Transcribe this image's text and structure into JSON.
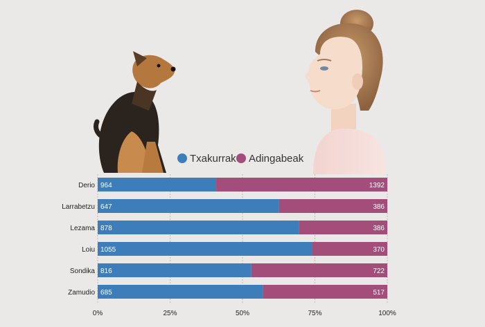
{
  "colors": {
    "background": "#ebe9e7",
    "series_dogs": "#3d7dba",
    "series_minors": "#a24d7a",
    "grid": "#bdbbb8"
  },
  "illustrations": {
    "dog": "dog-photo",
    "girl": "girl-photo"
  },
  "chart_data": {
    "type": "bar",
    "orientation": "horizontal",
    "stacked": "percent",
    "title": "",
    "xlabel": "",
    "ylabel": "",
    "categories": [
      "Derio",
      "Larrabetzu",
      "Lezama",
      "Loiu",
      "Sondika",
      "Zamudio"
    ],
    "series": [
      {
        "name": "Txakurrak",
        "color": "#3d7dba",
        "values": [
          964,
          647,
          878,
          1055,
          816,
          685
        ]
      },
      {
        "name": "Adingabeak",
        "color": "#a24d7a",
        "values": [
          1392,
          386,
          386,
          370,
          722,
          517
        ]
      }
    ],
    "xticks": [
      "0%",
      "25%",
      "50%",
      "75%",
      "100%"
    ],
    "xlim": [
      0,
      100
    ],
    "legend": {
      "placement": "top",
      "entries": [
        "Txakurrak",
        "Adingabeak"
      ]
    },
    "grid": true
  }
}
